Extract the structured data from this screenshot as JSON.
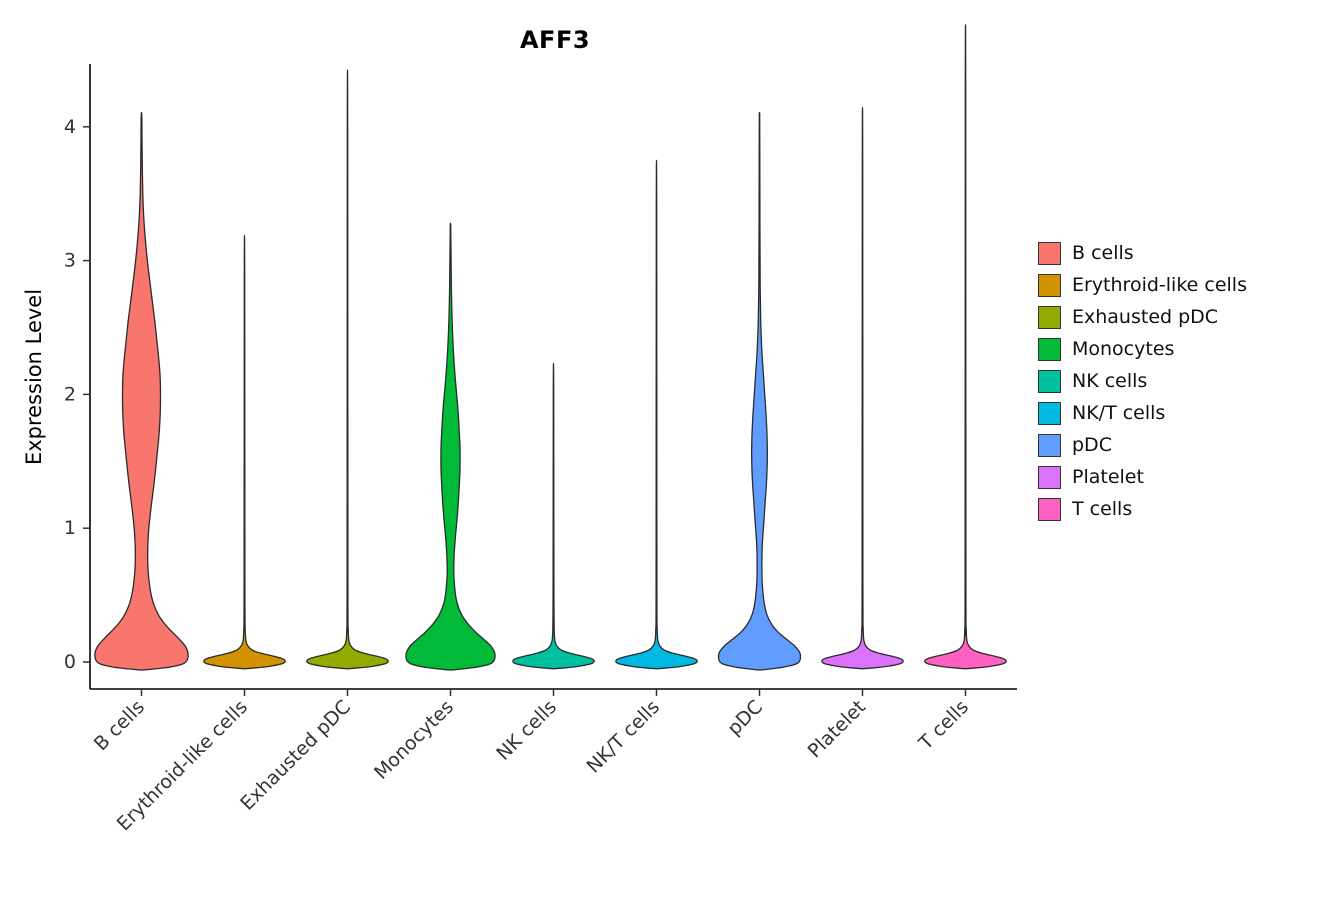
{
  "page": {
    "background": "#ffffff"
  },
  "chart_data": {
    "type": "violin",
    "title": "AFF3",
    "xlabel": "",
    "ylabel": "Expression Level",
    "ylim_display": [
      -0.2,
      4.47
    ],
    "yticks": [
      0,
      1,
      2,
      3,
      4
    ],
    "grid": "off",
    "legend_position": "right",
    "axis_color": "#000000",
    "outline_color": "#2b2b2b",
    "tick_color": "#333333",
    "tick_label_color": "#333333",
    "categories": [
      "B cells",
      "Erythroid-like cells",
      "Exhausted pDC",
      "Monocytes",
      "NK cells",
      "NK/T cells",
      "pDC",
      "Platelet",
      "T cells"
    ],
    "series": [
      {
        "name": "B cells",
        "color": "#F8766D",
        "max_expression": 4.1,
        "profile": [
          [
            -0.06,
            0.03
          ],
          [
            -0.045,
            0.45
          ],
          [
            -0.03,
            0.72
          ],
          [
            -0.01,
            0.9
          ],
          [
            0.02,
            0.97
          ],
          [
            0.07,
            0.98
          ],
          [
            0.12,
            0.92
          ],
          [
            0.17,
            0.8
          ],
          [
            0.22,
            0.66
          ],
          [
            0.28,
            0.5
          ],
          [
            0.35,
            0.36
          ],
          [
            0.44,
            0.25
          ],
          [
            0.55,
            0.18
          ],
          [
            0.68,
            0.14
          ],
          [
            0.82,
            0.13
          ],
          [
            0.98,
            0.15
          ],
          [
            1.15,
            0.2
          ],
          [
            1.35,
            0.27
          ],
          [
            1.55,
            0.33
          ],
          [
            1.75,
            0.38
          ],
          [
            1.95,
            0.4
          ],
          [
            2.15,
            0.39
          ],
          [
            2.35,
            0.34
          ],
          [
            2.55,
            0.28
          ],
          [
            2.75,
            0.21
          ],
          [
            2.95,
            0.14
          ],
          [
            3.12,
            0.09
          ],
          [
            3.28,
            0.055
          ],
          [
            3.45,
            0.032
          ],
          [
            3.65,
            0.02
          ],
          [
            3.85,
            0.013
          ],
          [
            4.05,
            0.008
          ],
          [
            4.1,
            0.005
          ]
        ]
      },
      {
        "name": "Erythroid-like cells",
        "color": "#D39200",
        "max_expression": 2.9,
        "profile": [
          [
            -0.05,
            0.025
          ],
          [
            -0.04,
            0.35
          ],
          [
            -0.028,
            0.6
          ],
          [
            -0.012,
            0.8
          ],
          [
            0.005,
            0.86
          ],
          [
            0.025,
            0.8
          ],
          [
            0.045,
            0.6
          ],
          [
            0.065,
            0.35
          ],
          [
            0.09,
            0.16
          ],
          [
            0.12,
            0.07
          ],
          [
            0.16,
            0.03
          ],
          [
            0.25,
            0.015
          ],
          [
            0.6,
            0.009
          ],
          [
            2.9,
            0.005
          ]
        ]
      },
      {
        "name": "Exhausted pDC",
        "color": "#93AA00",
        "max_expression": 4.0,
        "profile": [
          [
            -0.05,
            0.025
          ],
          [
            -0.04,
            0.35
          ],
          [
            -0.028,
            0.6
          ],
          [
            -0.012,
            0.8
          ],
          [
            0.005,
            0.86
          ],
          [
            0.025,
            0.8
          ],
          [
            0.045,
            0.6
          ],
          [
            0.065,
            0.35
          ],
          [
            0.09,
            0.16
          ],
          [
            0.12,
            0.07
          ],
          [
            0.16,
            0.03
          ],
          [
            0.25,
            0.015
          ],
          [
            0.6,
            0.009
          ],
          [
            4.0,
            0.005
          ]
        ]
      },
      {
        "name": "Monocytes",
        "color": "#00BA38",
        "max_expression": 3.27,
        "profile": [
          [
            -0.06,
            0.03
          ],
          [
            -0.045,
            0.42
          ],
          [
            -0.03,
            0.68
          ],
          [
            -0.01,
            0.86
          ],
          [
            0.02,
            0.93
          ],
          [
            0.07,
            0.93
          ],
          [
            0.12,
            0.85
          ],
          [
            0.17,
            0.7
          ],
          [
            0.22,
            0.54
          ],
          [
            0.28,
            0.38
          ],
          [
            0.35,
            0.24
          ],
          [
            0.44,
            0.14
          ],
          [
            0.55,
            0.09
          ],
          [
            0.68,
            0.07
          ],
          [
            0.82,
            0.08
          ],
          [
            0.96,
            0.11
          ],
          [
            1.12,
            0.15
          ],
          [
            1.28,
            0.18
          ],
          [
            1.44,
            0.2
          ],
          [
            1.6,
            0.2
          ],
          [
            1.76,
            0.18
          ],
          [
            1.92,
            0.15
          ],
          [
            2.08,
            0.11
          ],
          [
            2.24,
            0.075
          ],
          [
            2.4,
            0.05
          ],
          [
            2.58,
            0.032
          ],
          [
            2.78,
            0.02
          ],
          [
            3.0,
            0.012
          ],
          [
            3.2,
            0.007
          ],
          [
            3.27,
            0.004
          ]
        ]
      },
      {
        "name": "NK cells",
        "color": "#00C19F",
        "max_expression": 2.05,
        "profile": [
          [
            -0.05,
            0.025
          ],
          [
            -0.04,
            0.35
          ],
          [
            -0.028,
            0.6
          ],
          [
            -0.012,
            0.8
          ],
          [
            0.005,
            0.86
          ],
          [
            0.025,
            0.8
          ],
          [
            0.045,
            0.6
          ],
          [
            0.065,
            0.35
          ],
          [
            0.09,
            0.16
          ],
          [
            0.12,
            0.07
          ],
          [
            0.16,
            0.03
          ],
          [
            0.25,
            0.015
          ],
          [
            0.6,
            0.009
          ],
          [
            2.05,
            0.005
          ]
        ]
      },
      {
        "name": "NK/T cells",
        "color": "#00B9E3",
        "max_expression": 3.4,
        "profile": [
          [
            -0.05,
            0.025
          ],
          [
            -0.04,
            0.35
          ],
          [
            -0.028,
            0.6
          ],
          [
            -0.012,
            0.8
          ],
          [
            0.005,
            0.86
          ],
          [
            0.025,
            0.8
          ],
          [
            0.045,
            0.6
          ],
          [
            0.065,
            0.35
          ],
          [
            0.09,
            0.16
          ],
          [
            0.12,
            0.07
          ],
          [
            0.16,
            0.03
          ],
          [
            0.25,
            0.015
          ],
          [
            0.6,
            0.009
          ],
          [
            3.4,
            0.005
          ]
        ]
      },
      {
        "name": "pDC",
        "color": "#619CFF",
        "max_expression": 4.1,
        "profile": [
          [
            -0.06,
            0.03
          ],
          [
            -0.045,
            0.38
          ],
          [
            -0.03,
            0.62
          ],
          [
            -0.01,
            0.8
          ],
          [
            0.02,
            0.86
          ],
          [
            0.07,
            0.85
          ],
          [
            0.12,
            0.74
          ],
          [
            0.17,
            0.57
          ],
          [
            0.22,
            0.4
          ],
          [
            0.28,
            0.26
          ],
          [
            0.36,
            0.15
          ],
          [
            0.46,
            0.09
          ],
          [
            0.58,
            0.06
          ],
          [
            0.72,
            0.05
          ],
          [
            0.88,
            0.06
          ],
          [
            1.04,
            0.09
          ],
          [
            1.2,
            0.12
          ],
          [
            1.36,
            0.15
          ],
          [
            1.52,
            0.165
          ],
          [
            1.68,
            0.16
          ],
          [
            1.84,
            0.14
          ],
          [
            2.0,
            0.11
          ],
          [
            2.16,
            0.08
          ],
          [
            2.32,
            0.05
          ],
          [
            2.5,
            0.03
          ],
          [
            2.7,
            0.018
          ],
          [
            2.95,
            0.012
          ],
          [
            3.3,
            0.009
          ],
          [
            3.7,
            0.007
          ],
          [
            4.05,
            0.005
          ],
          [
            4.1,
            0.004
          ]
        ]
      },
      {
        "name": "Platelet",
        "color": "#DB72FB",
        "max_expression": 3.75,
        "profile": [
          [
            -0.05,
            0.025
          ],
          [
            -0.04,
            0.35
          ],
          [
            -0.028,
            0.6
          ],
          [
            -0.012,
            0.8
          ],
          [
            0.005,
            0.86
          ],
          [
            0.025,
            0.8
          ],
          [
            0.045,
            0.6
          ],
          [
            0.065,
            0.35
          ],
          [
            0.09,
            0.16
          ],
          [
            0.12,
            0.07
          ],
          [
            0.16,
            0.03
          ],
          [
            0.25,
            0.015
          ],
          [
            0.6,
            0.009
          ],
          [
            3.75,
            0.005
          ]
        ]
      },
      {
        "name": "T cells",
        "color": "#FF61C3",
        "max_expression": 4.3,
        "profile": [
          [
            -0.05,
            0.025
          ],
          [
            -0.04,
            0.35
          ],
          [
            -0.028,
            0.6
          ],
          [
            -0.012,
            0.8
          ],
          [
            0.005,
            0.86
          ],
          [
            0.025,
            0.8
          ],
          [
            0.045,
            0.6
          ],
          [
            0.065,
            0.35
          ],
          [
            0.09,
            0.16
          ],
          [
            0.12,
            0.07
          ],
          [
            0.16,
            0.03
          ],
          [
            0.25,
            0.015
          ],
          [
            0.6,
            0.009
          ],
          [
            4.3,
            0.005
          ]
        ]
      }
    ]
  }
}
